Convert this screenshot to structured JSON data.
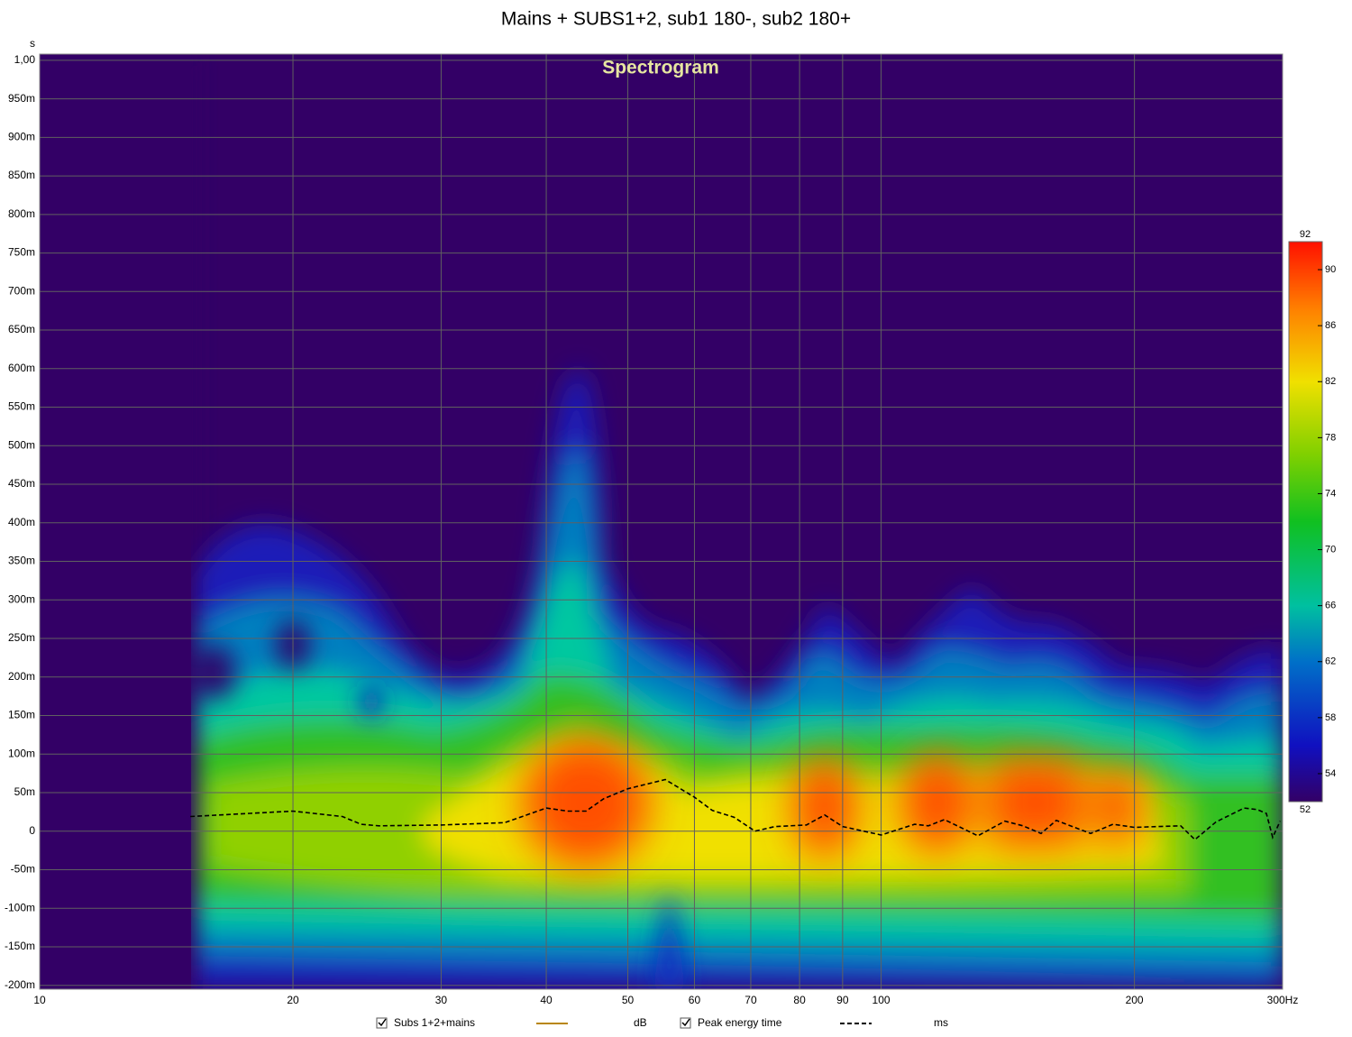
{
  "chart_data": {
    "type": "line",
    "title": "Mains + SUBS1+2, sub1 180-, sub2 180+",
    "subtitle": "Spectrogram",
    "y_axis_label": "s",
    "xscale": "log",
    "xlim": [
      10,
      300
    ],
    "ylim": [
      -0.205,
      1.008
    ],
    "xticks": [
      10,
      20,
      30,
      40,
      50,
      60,
      70,
      80,
      90,
      100,
      200,
      {
        "value": 300,
        "label": "300Hz"
      }
    ],
    "yticks": [
      {
        "value": 1.0,
        "label": "1,00"
      },
      {
        "value": 0.95,
        "label": "950m"
      },
      {
        "value": 0.9,
        "label": "900m"
      },
      {
        "value": 0.85,
        "label": "850m"
      },
      {
        "value": 0.8,
        "label": "800m"
      },
      {
        "value": 0.75,
        "label": "750m"
      },
      {
        "value": 0.7,
        "label": "700m"
      },
      {
        "value": 0.65,
        "label": "650m"
      },
      {
        "value": 0.6,
        "label": "600m"
      },
      {
        "value": 0.55,
        "label": "550m"
      },
      {
        "value": 0.5,
        "label": "500m"
      },
      {
        "value": 0.45,
        "label": "450m"
      },
      {
        "value": 0.4,
        "label": "400m"
      },
      {
        "value": 0.35,
        "label": "350m"
      },
      {
        "value": 0.3,
        "label": "300m"
      },
      {
        "value": 0.25,
        "label": "250m"
      },
      {
        "value": 0.2,
        "label": "200m"
      },
      {
        "value": 0.15,
        "label": "150m"
      },
      {
        "value": 0.1,
        "label": "100m"
      },
      {
        "value": 0.05,
        "label": "50m"
      },
      0,
      {
        "value": -0.05,
        "label": "-50m"
      },
      {
        "value": -0.1,
        "label": "-100m"
      },
      {
        "value": -0.15,
        "label": "-150m"
      },
      {
        "value": -0.2,
        "label": "-200m"
      }
    ],
    "grid": true,
    "legend_position": "bottom",
    "colorbar": {
      "lim": [
        52,
        92
      ],
      "ticks": [
        52,
        54,
        58,
        62,
        66,
        70,
        74,
        78,
        82,
        86,
        90,
        92
      ]
    },
    "series": [
      {
        "name": "Subs 1+2+mains",
        "color": "#b8860b",
        "unit": "dB"
      },
      {
        "name": "Peak energy time",
        "color": "#000000",
        "unit": "ms",
        "dash": true,
        "x": [
          15.1,
          20.0,
          22.9,
          24.1,
          25.3,
          30,
          35.7,
          40,
          42.4,
          44.6,
          46.8,
          50,
          55.4,
          60,
          63.0,
          66.9,
          70.8,
          74.8,
          81.5,
          85.7,
          90,
          100,
          109.6,
          113.8,
          118.9,
          130.3,
          140.3,
          147.4,
          154.9,
          161.5,
          168.8,
          177.4,
          188.6,
          200,
          227,
          236,
          250,
          270,
          280,
          287,
          292,
          298
        ],
        "values": [
          0.019,
          0.026,
          0.019,
          0.009,
          0.007,
          0.008,
          0.011,
          0.03,
          0.026,
          0.026,
          0.042,
          0.055,
          0.067,
          0.044,
          0.027,
          0.018,
          0.0,
          0.006,
          0.008,
          0.021,
          0.006,
          -0.005,
          0.009,
          0.007,
          0.015,
          -0.006,
          0.013,
          0.007,
          -0.003,
          0.014,
          0.006,
          -0.003,
          0.009,
          0.005,
          0.007,
          -0.011,
          0.012,
          0.03,
          0.028,
          0.023,
          -0.008,
          0.013
        ]
      }
    ]
  }
}
